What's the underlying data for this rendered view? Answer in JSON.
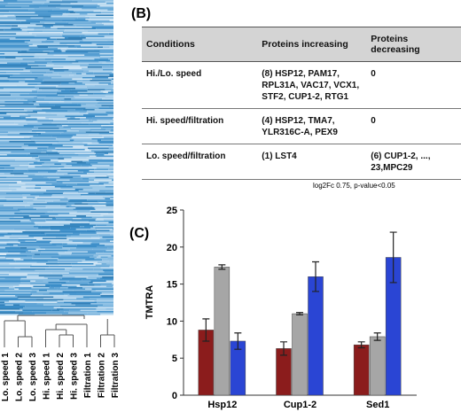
{
  "heatmap": {
    "samples": [
      "Lo. speed 1",
      "Lo. speed 2",
      "Lo. speed 3",
      "Hi. speed 1",
      "Hi. speed 2",
      "Hi. speed 3",
      "Filtration 1",
      "Filtration 2",
      "Filtration 3"
    ]
  },
  "table": {
    "label": "(B)",
    "header": [
      "Conditions",
      "Proteins increasing",
      "Proteins decreasing"
    ],
    "rows": [
      [
        "Hi./Lo. speed",
        "(8) HSP12, PAM17, RPL31A, VAC17, VCX1, STF2, CUP1-2, RTG1",
        "0"
      ],
      [
        "Hi. speed/filtration",
        "(4) HSP12, TMA7, YLR316C-A, PEX9",
        "0"
      ],
      [
        "Lo. speed/filtration",
        "(1) LST4",
        "(6) CUP1-2, ..., 23,MPC29"
      ]
    ],
    "footnote": "log2Fc 0.75, p-value<0.05"
  },
  "chart_data": {
    "type": "bar",
    "label": "(C)",
    "ylabel": "TMTRA",
    "categories": [
      "Hsp12",
      "Cup1-2",
      "Sed1"
    ],
    "series": [
      {
        "color": "#8b1c1c",
        "values": [
          8.8,
          6.3,
          6.8
        ],
        "errors": [
          1.5,
          0.9,
          0.4
        ]
      },
      {
        "color": "#a6a6a6",
        "values": [
          17.3,
          11.0,
          7.9
        ],
        "errors": [
          0.3,
          0.15,
          0.5
        ]
      },
      {
        "color": "#2a45d4",
        "values": [
          7.3,
          16.0,
          18.6
        ],
        "errors": [
          1.1,
          2.0,
          3.4
        ]
      }
    ],
    "ylim": [
      0,
      25
    ],
    "yticks": [
      0,
      5,
      10,
      15,
      20,
      25
    ]
  }
}
